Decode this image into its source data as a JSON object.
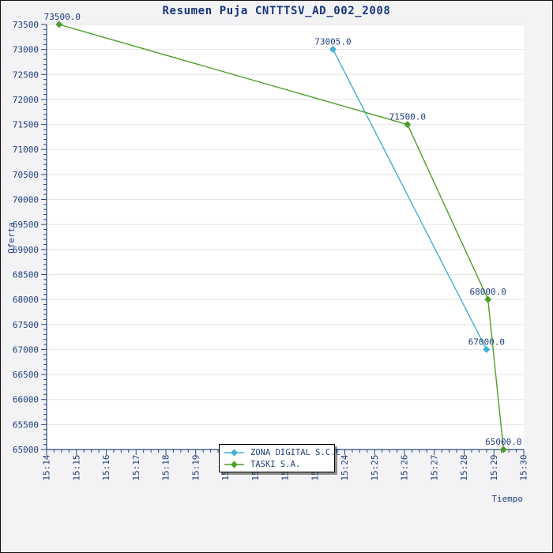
{
  "chart_data": {
    "type": "line",
    "title": "Resumen Puja CNTTTSV_AD_002_2008",
    "xlabel": "Tiempo",
    "ylabel": "Oferta",
    "grid": "horizontal-only",
    "plot_bg": "#ffffff",
    "outer_bg": "#f3f3f6",
    "text_color": "#1f3f7f",
    "x_axis": {
      "start": "15:14",
      "end": "15:30",
      "tick_interval_minutes": 1,
      "tick_labels": [
        "15:14",
        "15:15",
        "15:16",
        "15:17",
        "15:18",
        "15:19",
        "15:20",
        "15:21",
        "15:22",
        "15:23",
        "15:24",
        "15:25",
        "15:26",
        "15:27",
        "15:28",
        "15:29",
        "15:30"
      ]
    },
    "y_axis": {
      "min": 65000,
      "max": 73500,
      "tick_step": 500,
      "minor_tick_step": 100,
      "tick_labels": [
        "65000",
        "65500",
        "66000",
        "66500",
        "67000",
        "67500",
        "68000",
        "68500",
        "69000",
        "69500",
        "70000",
        "70500",
        "71000",
        "71500",
        "72000",
        "72500",
        "73000",
        "73500"
      ]
    },
    "legend": {
      "position": "bottom-center",
      "entries": [
        {
          "label": "ZONA DIGITAL S.C.C",
          "color": "#3fb0d4"
        },
        {
          "label": "TASKI S.A.",
          "color": "#4d9e2a"
        }
      ]
    },
    "series": [
      {
        "name": "ZONA DIGITAL S.C.C",
        "color": "#3fb0d4",
        "marker": "diamond",
        "points": [
          {
            "time": "15:23:35",
            "minutes_after_start": 9.6,
            "value": 73005.0,
            "label": "73005.0"
          },
          {
            "time": "15:28:45",
            "minutes_after_start": 14.75,
            "value": 67000.0,
            "label": "67000.0"
          }
        ]
      },
      {
        "name": "TASKI S.A.",
        "color": "#4d9e2a",
        "marker": "diamond",
        "points": [
          {
            "time": "15:14:25",
            "minutes_after_start": 0.42,
            "value": 73500.0,
            "label": "73500.0"
          },
          {
            "time": "15:26:05",
            "minutes_after_start": 12.1,
            "value": 71500.0,
            "label": "71500.0"
          },
          {
            "time": "15:28:50",
            "minutes_after_start": 14.8,
            "value": 68000.0,
            "label": "68000.0"
          },
          {
            "time": "15:29:20",
            "minutes_after_start": 15.32,
            "value": 65000.0,
            "label": "65000.0"
          }
        ]
      }
    ]
  }
}
